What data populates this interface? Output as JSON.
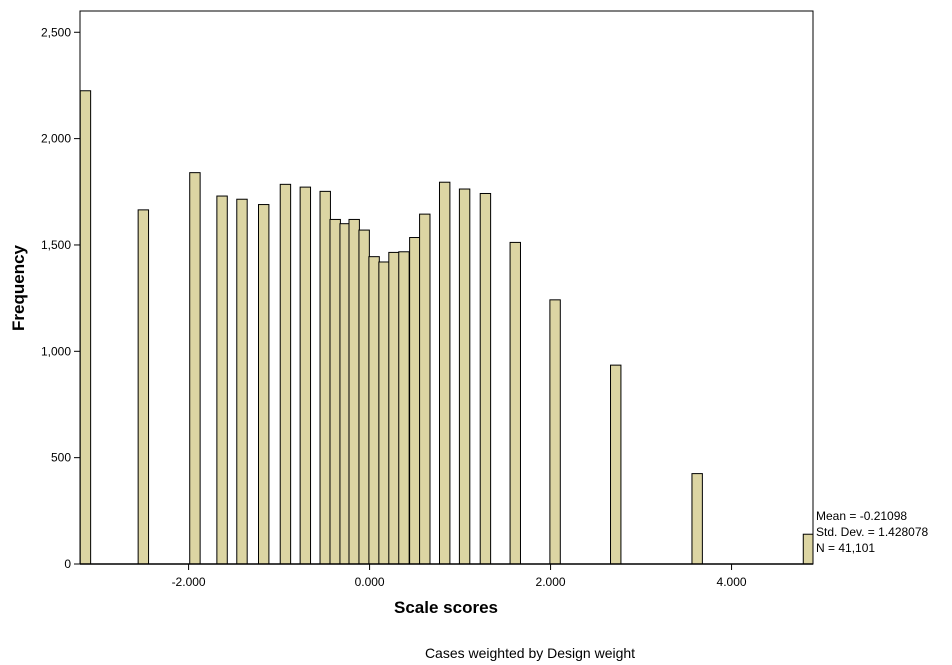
{
  "chart_data": {
    "type": "bar",
    "xlabel": "Scale scores",
    "ylabel": "Frequency",
    "xlim": [
      -3.2,
      4.9
    ],
    "ylim": [
      0,
      2500
    ],
    "grid": false,
    "bar_color": "#dcd5a3",
    "x_ticks": [
      {
        "value": -2,
        "label": "-2.000"
      },
      {
        "value": 0,
        "label": "0.000"
      },
      {
        "value": 2,
        "label": "2.000"
      },
      {
        "value": 4,
        "label": "4.000"
      }
    ],
    "y_ticks": [
      {
        "value": 0,
        "label": "0"
      },
      {
        "value": 500,
        "label": "500"
      },
      {
        "value": 1000,
        "label": "1,000"
      },
      {
        "value": 1500,
        "label": "1,500"
      },
      {
        "value": 2000,
        "label": "2,000"
      },
      {
        "value": 2500,
        "label": "2,500"
      }
    ],
    "bars": [
      {
        "x": -3.14,
        "y": 2225
      },
      {
        "x": -2.5,
        "y": 1665
      },
      {
        "x": -1.93,
        "y": 1840
      },
      {
        "x": -1.63,
        "y": 1730
      },
      {
        "x": -1.41,
        "y": 1715
      },
      {
        "x": -1.17,
        "y": 1690
      },
      {
        "x": -0.93,
        "y": 1785
      },
      {
        "x": -0.71,
        "y": 1772
      },
      {
        "x": -0.49,
        "y": 1752
      },
      {
        "x": -0.38,
        "y": 1620
      },
      {
        "x": -0.27,
        "y": 1600
      },
      {
        "x": -0.17,
        "y": 1620
      },
      {
        "x": -0.06,
        "y": 1570
      },
      {
        "x": 0.05,
        "y": 1445
      },
      {
        "x": 0.16,
        "y": 1420
      },
      {
        "x": 0.27,
        "y": 1465
      },
      {
        "x": 0.38,
        "y": 1468
      },
      {
        "x": 0.5,
        "y": 1535
      },
      {
        "x": 0.61,
        "y": 1645
      },
      {
        "x": 0.83,
        "y": 1795
      },
      {
        "x": 1.05,
        "y": 1763
      },
      {
        "x": 1.28,
        "y": 1742
      },
      {
        "x": 1.61,
        "y": 1512
      },
      {
        "x": 2.05,
        "y": 1242
      },
      {
        "x": 2.72,
        "y": 935
      },
      {
        "x": 3.62,
        "y": 425
      },
      {
        "x": 4.85,
        "y": 140
      }
    ]
  },
  "stats": {
    "mean": "Mean = -0.21098",
    "std": "Std. Dev. = 1.428078",
    "n": "N = 41,101"
  },
  "footnote": "Cases weighted by Design weight"
}
